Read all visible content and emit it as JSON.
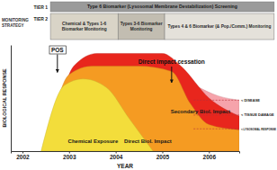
{
  "chart_data": {
    "type": "area",
    "monitoring_label": "MONITORING STRATEGY",
    "tiers": [
      {
        "label": "TIER 1",
        "boxes": [
          {
            "text": "Type 6 Biomarker (Lysosomal Membrane Destabilization) Screening",
            "x": [
              2002.6,
              2007.4
            ]
          }
        ]
      },
      {
        "label": "TIER 2",
        "boxes": [
          {
            "text": "Chemical & Types 1-6 Biomarker Monitoring",
            "x": [
              2002.6,
              2004.05
            ]
          },
          {
            "text": "Types 3-6 Biomarker Monitoring",
            "x": [
              2004.05,
              2005.05
            ]
          },
          {
            "text": "Types 4 & 6 Biomarker (& Pop./Comm.) Monitoring",
            "x": [
              2005.05,
              2007.4
            ]
          }
        ]
      }
    ],
    "x_label": "YEAR",
    "y_label": "BIOLOGICAL RESPONSE",
    "xlim": [
      2001.75,
      2006.65
    ],
    "xticks": [
      2002,
      2003,
      2004,
      2005,
      2006
    ],
    "ylim": [
      0,
      100
    ],
    "yticks": [],
    "tick_labels": "x",
    "series": [
      {
        "color": "#f6a3ab",
        "x": [
          2005.7,
          2006.2,
          2006.65
        ],
        "values": [
          62,
          52,
          48
        ]
      },
      {
        "name": "Secondary Biol. Impact",
        "color": "#e8261d",
        "x": [
          2002.6,
          2003.1,
          2003.6,
          2005.0,
          2005.4,
          2006.0,
          2006.65
        ],
        "values": [
          0,
          80,
          92,
          92,
          80,
          50,
          33
        ]
      },
      {
        "name": "Direct Biol. Impact",
        "color": "#f59b22",
        "x": [
          2002.5,
          2003.0,
          2003.5,
          2004.5,
          2005.2,
          2005.6,
          2006.0,
          2006.65
        ],
        "values": [
          0,
          72,
          80,
          80,
          75,
          45,
          25,
          20
        ]
      },
      {
        "name": "Chemical Exposure",
        "color": "#f3dd3b",
        "x": [
          2002.4,
          2002.9,
          2003.3,
          2003.8,
          2004.3,
          2004.8
        ],
        "values": [
          0,
          62,
          68,
          60,
          30,
          0
        ]
      }
    ],
    "thresholds": [
      {
        "label": "< DISEASE",
        "value": 48
      },
      {
        "label": "< TISSUE DAMAGE",
        "value": 34
      },
      {
        "label": "< LYSOSOMAL RESPONSE",
        "value": 21
      }
    ],
    "annotations": [
      {
        "text": "POS",
        "x": 2002.75
      },
      {
        "text": "Direct impact cessation",
        "x": 2005.2
      }
    ]
  }
}
